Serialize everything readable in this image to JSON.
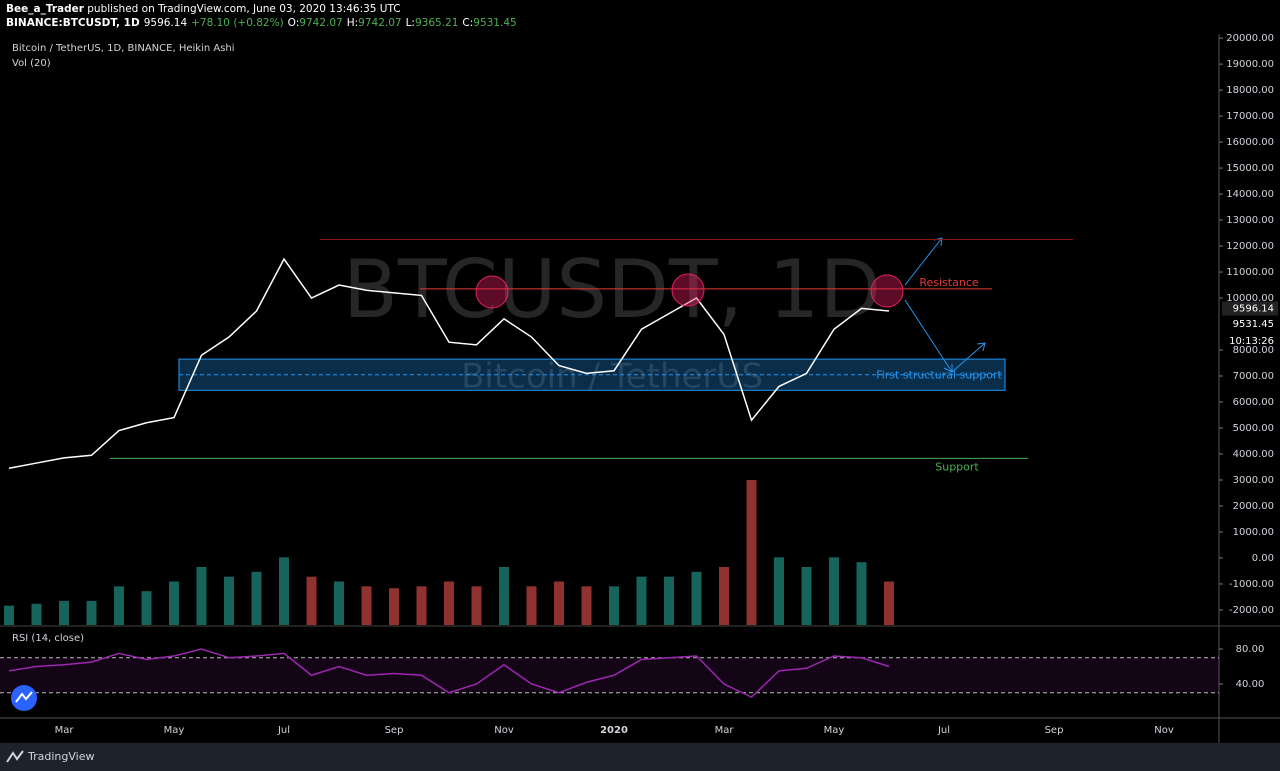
{
  "header": {
    "author": "Bee_a_Trader",
    "published": "published on TradingView.com, June 03, 2020 13:46:35 UTC",
    "symbol": "BINANCE:BTCUSDT, 1D",
    "price": "9596.14",
    "change": "+78.10 (+0.82%)",
    "ohlc": [
      {
        "key": "O:",
        "value": "9742.07"
      },
      {
        "key": "H:",
        "value": "9742.07"
      },
      {
        "key": "L:",
        "value": "9365.21"
      },
      {
        "key": "C:",
        "value": "9531.45"
      }
    ]
  },
  "chart_data": {
    "type": "line",
    "title": "Bitcoin / TetherUS, 1D, BINANCE, Heikin Ashi",
    "watermark": "BTCUSDT, 1D",
    "watermark_sub": "Bitcoin / TetherUS",
    "categories": [
      null,
      null,
      "Mar",
      null,
      null,
      null,
      "May",
      null,
      null,
      null,
      "Jul",
      null,
      null,
      null,
      "Sep",
      null,
      null,
      null,
      "Nov",
      null,
      null,
      null,
      "2020",
      null,
      null,
      null,
      "Mar",
      null,
      null,
      null,
      "May",
      null,
      null,
      null,
      "Jul",
      null,
      null,
      null,
      "Sep",
      null,
      null,
      null,
      "Nov",
      null,
      null
    ],
    "values": [
      3450,
      3650,
      3850,
      3950,
      4900,
      5200,
      5400,
      7800,
      8500,
      9500,
      11500,
      10000,
      10500,
      10300,
      10200,
      10100,
      8300,
      8200,
      9200,
      8500,
      7400,
      7100,
      7200,
      8800,
      9400,
      10000,
      8600,
      5300,
      6600,
      7100,
      8800,
      9600,
      9500,
      null,
      null,
      null,
      null,
      null,
      null,
      null,
      null,
      null,
      null,
      null,
      null
    ],
    "color": "#ffffff",
    "ylim": [
      -2580,
      20120
    ],
    "yticks": [
      {
        "value": 20000,
        "label": "20000.00"
      },
      {
        "value": 19000,
        "label": "19000.00"
      },
      {
        "value": 18000,
        "label": "18000.00"
      },
      {
        "value": 17000,
        "label": "17000.00"
      },
      {
        "value": 16000,
        "label": "16000.00"
      },
      {
        "value": 15000,
        "label": "15000.00"
      },
      {
        "value": 14000,
        "label": "14000.00"
      },
      {
        "value": 13000,
        "label": "13000.00"
      },
      {
        "value": 12000,
        "label": "12000.00"
      },
      {
        "value": 11000,
        "label": "11000.00"
      },
      {
        "value": 10000,
        "label": "10000.00"
      },
      {
        "value": 8000,
        "label": "8000.00"
      },
      {
        "value": 7000,
        "label": "7000.00"
      },
      {
        "value": 6000,
        "label": "6000.00"
      },
      {
        "value": 5000,
        "label": "5000.00"
      },
      {
        "value": 4000,
        "label": "4000.00"
      },
      {
        "value": 3000,
        "label": "3000.00"
      },
      {
        "value": 2000,
        "label": "2000.00"
      },
      {
        "value": 1000,
        "label": "1000.00"
      },
      {
        "value": 0,
        "label": "0.00"
      },
      {
        "value": -1000,
        "label": "-1000.00"
      },
      {
        "value": -2000,
        "label": "-2000.00"
      }
    ],
    "price_labels": [
      {
        "value": 9596.14,
        "label": "9596.14"
      },
      {
        "value": 9531.45,
        "label": "9531.45"
      }
    ],
    "countdown": "10:13:26",
    "levels": [
      {
        "value": 12250,
        "color": "#8b1a1a"
      },
      {
        "value": 10350,
        "label": "Resistance",
        "color": "#e53935"
      },
      {
        "value": 3830,
        "label": "Support",
        "color": "#4caf50"
      }
    ],
    "zone": {
      "low": 6450,
      "high": 7650,
      "mid": 7050,
      "label": "First structural support",
      "color": "#2196f3"
    },
    "volume": {
      "title": "Vol (20)",
      "up_color": "#26a69a",
      "down_color": "#ef5350",
      "values": [
        20,
        22,
        25,
        25,
        40,
        35,
        45,
        60,
        50,
        55,
        70,
        50,
        45,
        40,
        38,
        40,
        45,
        40,
        60,
        40,
        45,
        40,
        40,
        50,
        50,
        55,
        60,
        150,
        70,
        60,
        70,
        65,
        45,
        null,
        null,
        null,
        null,
        null,
        null,
        null,
        null,
        null,
        null,
        null,
        null
      ]
    },
    "rsi": {
      "title": "RSI (14, close)",
      "color": "#9c27b0",
      "ylim": [
        0,
        100
      ],
      "yticks": [
        {
          "value": 80,
          "label": "80.00"
        },
        {
          "value": 40,
          "label": "40.00"
        }
      ],
      "bands": [
        70,
        30
      ],
      "values": [
        55,
        60,
        62,
        65,
        75,
        68,
        72,
        80,
        70,
        72,
        75,
        50,
        60,
        50,
        52,
        50,
        30,
        40,
        62,
        40,
        30,
        42,
        50,
        68,
        70,
        72,
        40,
        25,
        55,
        58,
        72,
        70,
        60,
        null,
        null,
        null,
        null,
        null,
        null,
        null,
        null,
        null,
        null,
        null,
        null
      ]
    }
  },
  "footer": {
    "brand": "TradingView"
  }
}
